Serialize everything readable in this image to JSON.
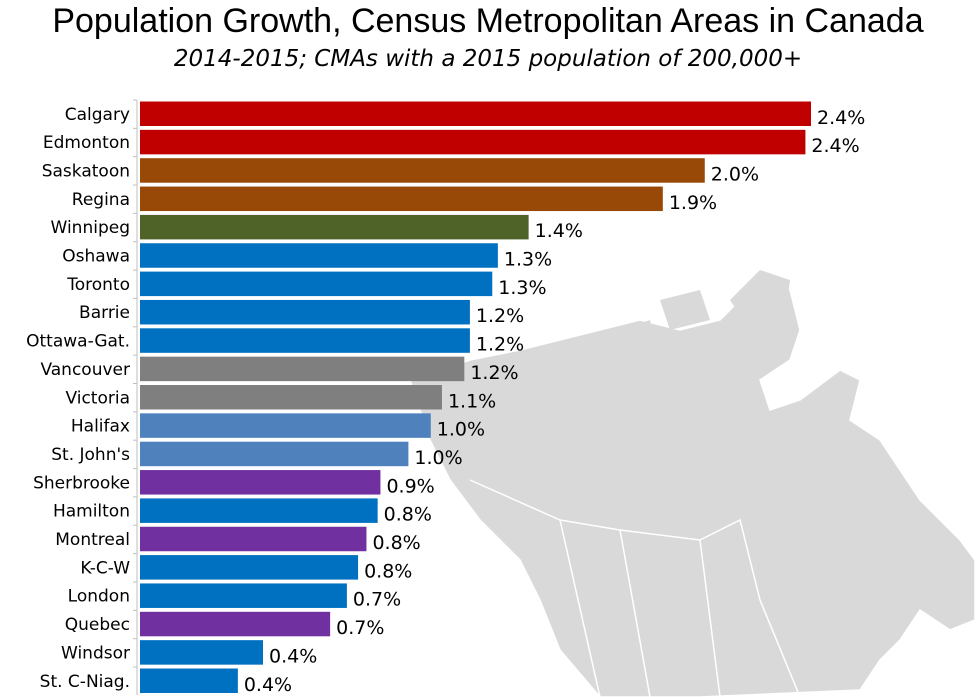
{
  "chart_data": {
    "type": "bar",
    "orientation": "horizontal",
    "title": "Population Growth, Census Metropolitan Areas in Canada",
    "subtitle": "2014-2015; CMAs with a 2015 population of 200,000+",
    "xlabel": "",
    "ylabel": "",
    "xlim": [
      0,
      2.4
    ],
    "grid": false,
    "legend": "none",
    "categories": [
      "Calgary",
      "Edmonton",
      "Saskatoon",
      "Regina",
      "Winnipeg",
      "Oshawa",
      "Toronto",
      "Barrie",
      "Ottawa-Gat.",
      "Vancouver",
      "Victoria",
      "Halifax",
      "St. John's",
      "Sherbrooke",
      "Hamilton",
      "Montreal",
      "K-C-W",
      "London",
      "Quebec",
      "Windsor",
      "St. C-Niag."
    ],
    "values": [
      2.4,
      2.38,
      2.02,
      1.87,
      1.39,
      1.28,
      1.26,
      1.18,
      1.18,
      1.16,
      1.08,
      1.04,
      0.96,
      0.86,
      0.85,
      0.81,
      0.78,
      0.74,
      0.68,
      0.44,
      0.35
    ],
    "data_labels": [
      "2.4%",
      "2.4%",
      "2.0%",
      "1.9%",
      "1.4%",
      "1.3%",
      "1.3%",
      "1.2%",
      "1.2%",
      "1.2%",
      "1.1%",
      "1.0%",
      "1.0%",
      "0.9%",
      "0.8%",
      "0.8%",
      "0.8%",
      "0.7%",
      "0.7%",
      "0.4%",
      "0.4%"
    ],
    "colors": [
      "#C00000",
      "#C00000",
      "#984807",
      "#984807",
      "#4F6228",
      "#0070C0",
      "#0070C0",
      "#0070C0",
      "#0070C0",
      "#7F7F7F",
      "#7F7F7F",
      "#4F81BD",
      "#4F81BD",
      "#7030A0",
      "#0070C0",
      "#7030A0",
      "#0070C0",
      "#0070C0",
      "#7030A0",
      "#0070C0",
      "#0070C0"
    ],
    "background_image": "canada-map-silhouette"
  }
}
